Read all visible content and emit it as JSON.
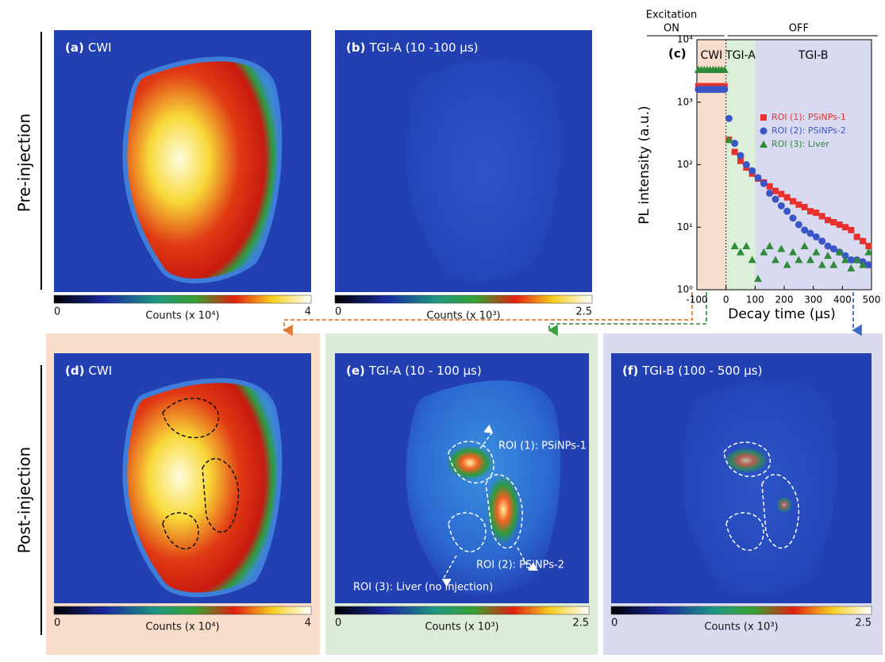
{
  "rows": [
    "Pre-injection",
    "Post-injection"
  ],
  "panels": [
    {
      "tag": "(a)",
      "title": "CWI",
      "bar": {
        "min": "0",
        "max": "4",
        "label": "Counts (x 10⁴)"
      }
    },
    {
      "tag": "(b)",
      "title": "TGI-A (10 -100 μs)",
      "bar": {
        "min": "0",
        "max": "2.5",
        "label": "Counts (x 10³)"
      }
    },
    {
      "tag": "(d)",
      "title": "CWI",
      "bar": {
        "min": "0",
        "max": "4",
        "label": "Counts (x 10⁴)"
      }
    },
    {
      "tag": "(e)",
      "title": "TGI-A (10 - 100 μs)",
      "bar": {
        "min": "0",
        "max": "2.5",
        "label": "Counts (x 10³)"
      },
      "notes": [
        "ROI (1): PSiNPs-1",
        "ROI (2): PSiNPs-2",
        "ROI (3): Liver (no injection)"
      ]
    },
    {
      "tag": "(f)",
      "title": "TGI-B (100 - 500 μs)",
      "bar": {
        "min": "0",
        "max": "2.5",
        "label": "Counts (x 10³)"
      }
    }
  ],
  "chart_data": {
    "type": "scatter",
    "tag": "(c)",
    "header": {
      "on": [
        "Excitation",
        "ON"
      ],
      "off": "OFF"
    },
    "regions": [
      {
        "label": "CWI",
        "range": [
          -100,
          0
        ],
        "color": "#f6dccb"
      },
      {
        "label": "TGI-A",
        "range": [
          0,
          100
        ],
        "color": "#dcefd9"
      },
      {
        "label": "TGI-B",
        "range": [
          100,
          500
        ],
        "color": "#d8daef"
      }
    ],
    "xlabel": "Decay time (μs)",
    "ylabel": "PL intensity (a.u.)",
    "log_y": true,
    "xlim": [
      -100,
      500
    ],
    "ylim": [
      1,
      10000
    ],
    "xticks": [
      -100,
      0,
      100,
      200,
      300,
      400,
      500
    ],
    "yticks": [
      {
        "value": 1,
        "label": "10⁰"
      },
      {
        "value": 10,
        "label": "10¹"
      },
      {
        "value": 100,
        "label": "10²"
      },
      {
        "value": 1000,
        "label": "10³"
      },
      {
        "value": 10000,
        "label": "10⁴"
      }
    ],
    "x": [
      -95,
      -85,
      -75,
      -65,
      -55,
      -45,
      -35,
      -25,
      -15,
      -5,
      10,
      30,
      50,
      70,
      90,
      110,
      130,
      150,
      170,
      190,
      210,
      230,
      250,
      270,
      290,
      310,
      330,
      350,
      370,
      390,
      410,
      430,
      450,
      470,
      490
    ],
    "series": [
      {
        "name": "ROI (1): PSiNPs-1",
        "color": "#e8302e",
        "marker": "square",
        "values": [
          1800,
          1800,
          1800,
          1800,
          1800,
          1800,
          1800,
          1800,
          1800,
          1800,
          250,
          160,
          115,
          90,
          72,
          60,
          52,
          45,
          38,
          34,
          30,
          26,
          23,
          21,
          18,
          17,
          15,
          13,
          12,
          11,
          10,
          9,
          7,
          6,
          5
        ]
      },
      {
        "name": "ROI (2): PSiNPs-2",
        "color": "#3a55c4",
        "marker": "circle",
        "values": [
          1600,
          1600,
          1600,
          1600,
          1600,
          1600,
          1600,
          1600,
          1600,
          1600,
          550,
          220,
          140,
          100,
          80,
          62,
          50,
          35,
          28,
          22,
          18,
          14,
          11,
          9,
          8,
          7,
          6,
          5,
          4.5,
          4,
          3.5,
          3,
          3,
          2.8,
          2.5
        ]
      },
      {
        "name": "ROI (3): Liver",
        "color": "#2f8a3a",
        "marker": "triangle",
        "values": [
          3300,
          3300,
          3300,
          3300,
          3300,
          3300,
          3300,
          3300,
          3300,
          3300,
          250,
          5,
          4,
          5,
          3,
          1.5,
          4,
          5,
          3,
          4.5,
          2.5,
          4,
          3,
          5,
          3,
          4,
          2.5,
          3.5,
          2.5,
          4,
          3,
          2.2,
          3,
          2.5,
          4
        ]
      }
    ]
  }
}
